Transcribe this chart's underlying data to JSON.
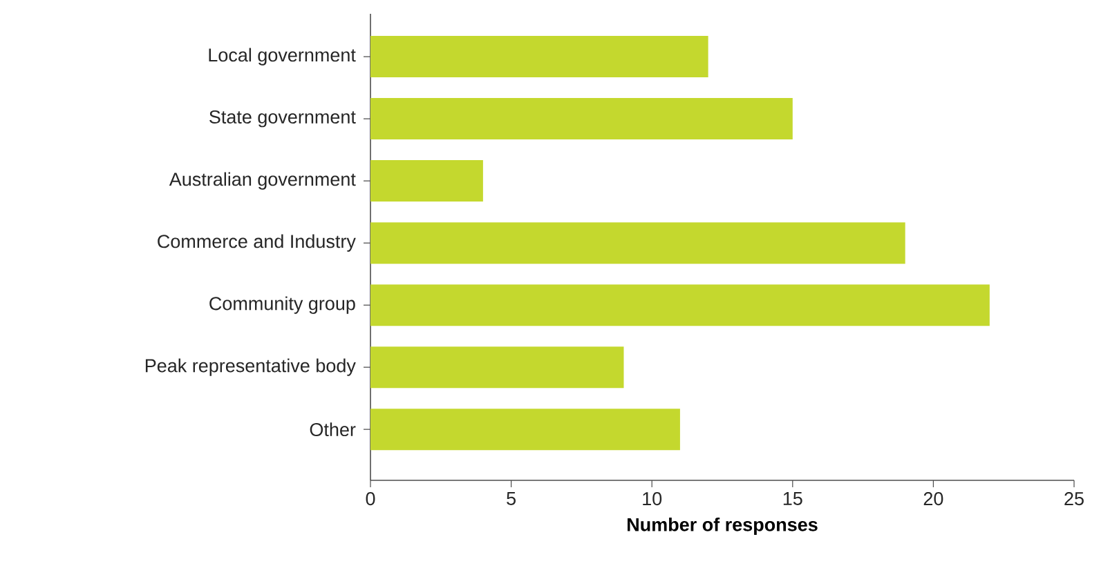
{
  "chart_data": {
    "type": "bar",
    "orientation": "horizontal",
    "xlabel": "Number of responses",
    "categories": [
      "Local government",
      "State government",
      "Australian government",
      "Commerce and Industry",
      "Community group",
      "Peak representative body",
      "Other"
    ],
    "values": [
      12,
      15,
      4,
      19,
      22,
      9,
      11
    ],
    "color": "#c4d82e",
    "xlim": [
      0,
      25
    ],
    "xticks": [
      0,
      5,
      10,
      15,
      20,
      25
    ],
    "grid": false
  }
}
